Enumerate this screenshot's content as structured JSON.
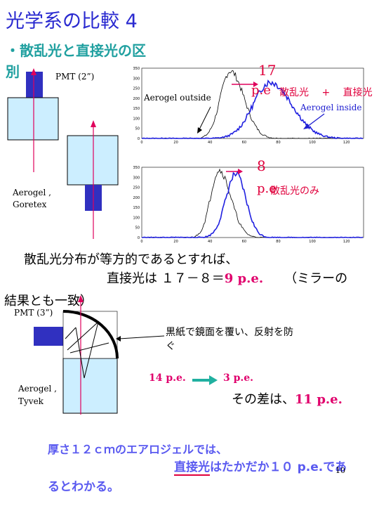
{
  "title": "光学系の比較 4",
  "subtitle_line1": "・散乱光と直接光の区",
  "subtitle_line2": "別",
  "pmt_label_1": "PMT (2”)",
  "aerogel_goretex_1": "Aerogel ,",
  "aerogel_goretex_2": "Goretex",
  "plot_top": {
    "label_outside": "Aerogel outside",
    "label_inside": "Aerogel inside",
    "shift_number": "17",
    "shift_unit": "p.e",
    "annotation": "散乱光 　+ 　直接光"
  },
  "plot_bottom": {
    "shift_number": "8",
    "shift_unit": "p.e",
    "annotation": "散乱光のみ"
  },
  "y_ticks": [
    "350",
    "300",
    "250",
    "200",
    "150",
    "100",
    "50",
    "0"
  ],
  "x_ticks": [
    "0",
    "20",
    "40",
    "60",
    "80",
    "100",
    "120"
  ],
  "statement_1": "散乱光分布が等方的であるとすれば、",
  "statement_2_prefix": "直接光は １７－８＝",
  "statement_2_value": "9 p.e.",
  "statement_2_suffix": "（ミラーの",
  "statement_3": "結果とも一致）",
  "pmt_label_2": "PMT (3”)",
  "black_paper_note_1": "黒紙で鏡面を覆い、反射を防",
  "black_paper_note_2": "ぐ",
  "aerogel_tyvek_1": "Aerogel ,",
  "aerogel_tyvek_2": "Tyvek",
  "before_value": "14 p.e.",
  "after_value": "3 p.e.",
  "difference_prefix": "その差は、",
  "difference_value": "11 p.e.",
  "conclusion_1": "厚さ１２ｃｍのエアロジェルでは、",
  "conclusion_2_underlined": "直接光",
  "conclusion_2_rest": "はたかだか１０ p.e.であ",
  "conclusion_3": "るとわかる。",
  "page_number": "10",
  "colors": {
    "title": "#2a2ad0",
    "accent": "#e0006c",
    "cyan_text": "#20a0a0",
    "blue_series": "#2020e0",
    "box_fill": "#cceeff"
  }
}
